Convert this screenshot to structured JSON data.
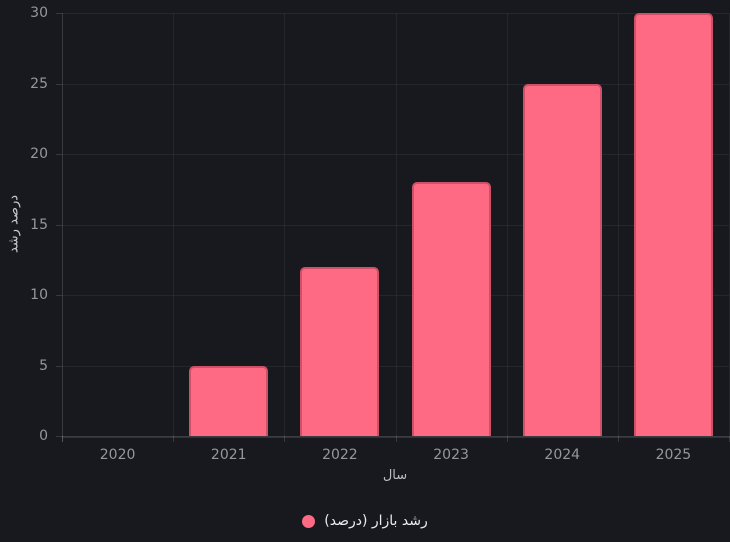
{
  "chart_data": {
    "type": "bar",
    "categories": [
      "2020",
      "2021",
      "2022",
      "2023",
      "2024",
      "2025"
    ],
    "values": [
      0,
      5,
      12,
      18,
      25,
      30
    ],
    "series_label": "رشد بازار (درصد)",
    "xlabel": "سال",
    "ylabel": "درصد رشد",
    "ylim": [
      0,
      30
    ],
    "yticks": [
      0,
      5,
      10,
      15,
      20,
      25,
      30
    ],
    "grid": true,
    "legend_position": "bottom",
    "colors": {
      "background": "#17191e",
      "bar_fill": "#fe6a83",
      "bar_border": "#ce5168",
      "grid_line": "rgba(255,255,255,0.06)",
      "axis_line": "rgba(255,255,255,0.14)",
      "tick_label": "#94979c",
      "axis_title": "#c9ccd0",
      "legend_text": "#eaebed"
    }
  }
}
